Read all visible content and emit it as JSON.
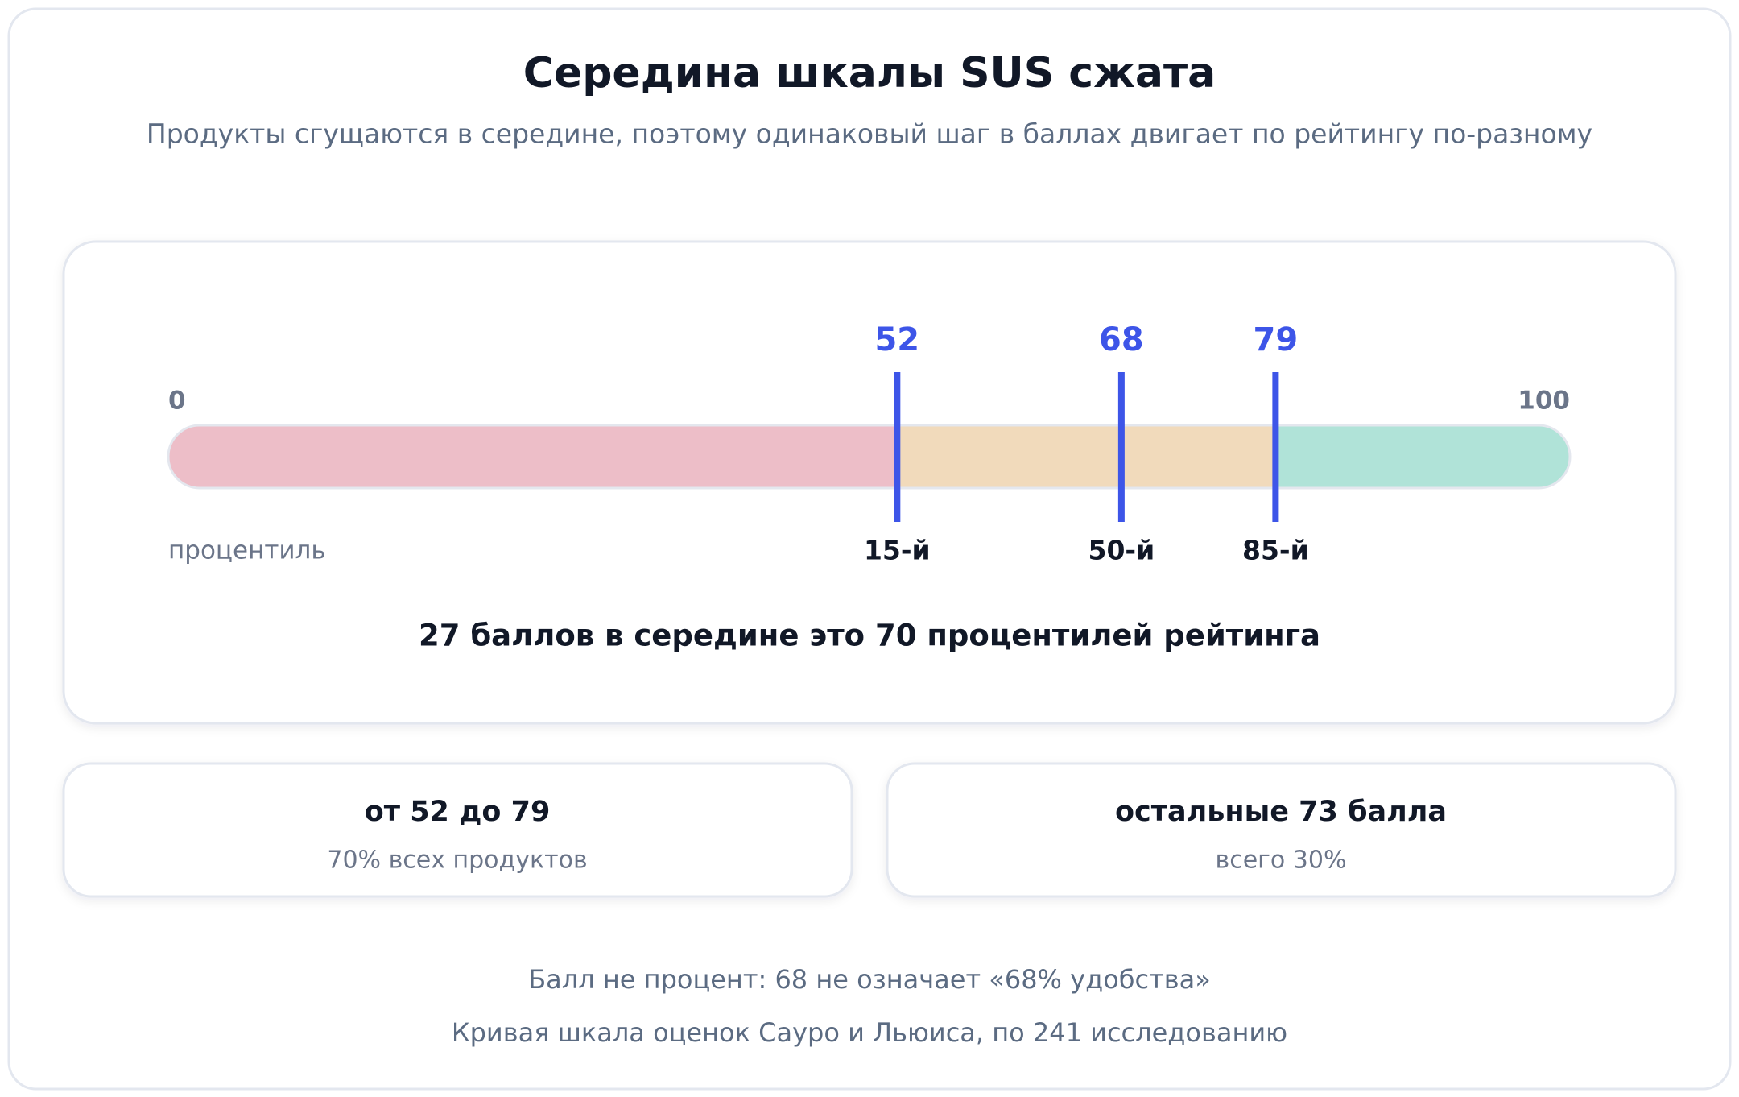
{
  "title": "Середина шкалы SUS сжата",
  "subtitle": "Продукты сгущаются в середине, поэтому одинаковый шаг в баллах двигает по рейтингу по-разному",
  "scale": {
    "min": 0,
    "max": 100,
    "axis_label": "процентиль",
    "markers": [
      {
        "value": 52,
        "percentile": "15-й"
      },
      {
        "value": 68,
        "percentile": "50-й"
      },
      {
        "value": 79,
        "percentile": "85-й"
      }
    ],
    "summary": "27 баллов в середине это 70 процентилей рейтинга"
  },
  "cards": [
    {
      "title": "от 52 до 79",
      "text": "70% всех продуктов"
    },
    {
      "title": "остальные 73 балла",
      "text": "всего 30%"
    }
  ],
  "footnotes": [
    "Балл не процент: 68 не означает «68% удобства»",
    "Кривая шкала оценок Сауро и Льюиса, по 241 исследованию"
  ]
}
